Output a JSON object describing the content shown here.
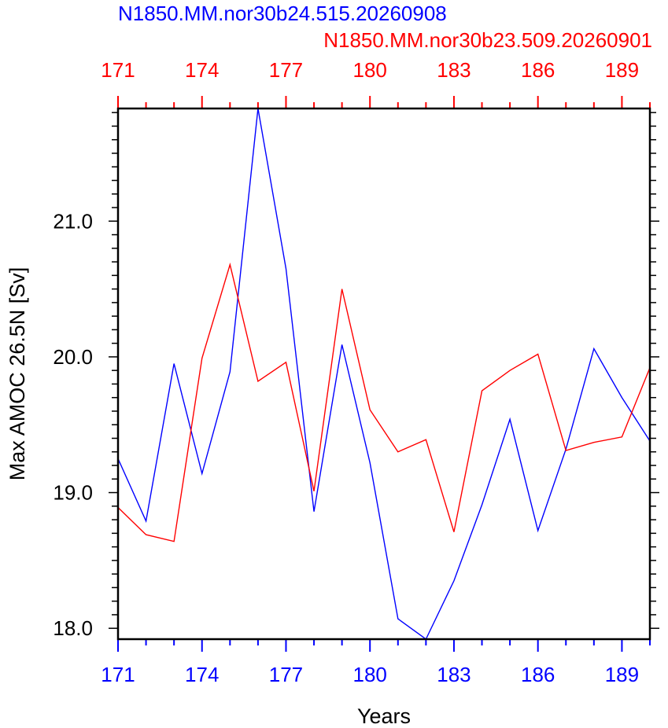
{
  "chart_data": {
    "type": "line",
    "titles": {
      "bottom_series": "N1850.MM.nor30b24.515.20260908",
      "top_series": "N1850.MM.nor30b23.509.20260901"
    },
    "xlabel": "Years",
    "ylabel": "Max AMOC 26.5N [Sv]",
    "xlim": [
      171,
      190
    ],
    "ylim": [
      17.92,
      21.83
    ],
    "x_ticks": [
      171,
      174,
      177,
      180,
      183,
      186,
      189
    ],
    "y_ticks": [
      18.0,
      19.0,
      20.0,
      21.0
    ],
    "y_tick_labels": [
      "18.0",
      "19.0",
      "20.0",
      "21.0"
    ],
    "grid": false,
    "x": [
      171,
      172,
      173,
      174,
      175,
      176,
      177,
      178,
      179,
      180,
      181,
      182,
      183,
      184,
      185,
      186,
      187,
      188,
      189,
      190
    ],
    "series": [
      {
        "name": "N1850.MM.nor30b24.515.20260908",
        "color": "#0000ff",
        "axis": "bottom",
        "values": [
          19.25,
          18.79,
          19.95,
          19.14,
          19.89,
          21.83,
          20.65,
          18.86,
          20.09,
          19.22,
          18.07,
          17.92,
          18.35,
          18.91,
          19.54,
          18.72,
          19.32,
          20.06,
          19.7,
          19.38
        ]
      },
      {
        "name": "N1850.MM.nor30b23.509.20260901",
        "color": "#ff0000",
        "axis": "top",
        "values": [
          18.89,
          18.69,
          18.64,
          19.99,
          20.68,
          19.82,
          19.96,
          19.01,
          20.5,
          19.61,
          19.3,
          19.39,
          18.71,
          19.75,
          19.9,
          20.02,
          19.31,
          19.37,
          19.41,
          19.92
        ]
      }
    ]
  }
}
